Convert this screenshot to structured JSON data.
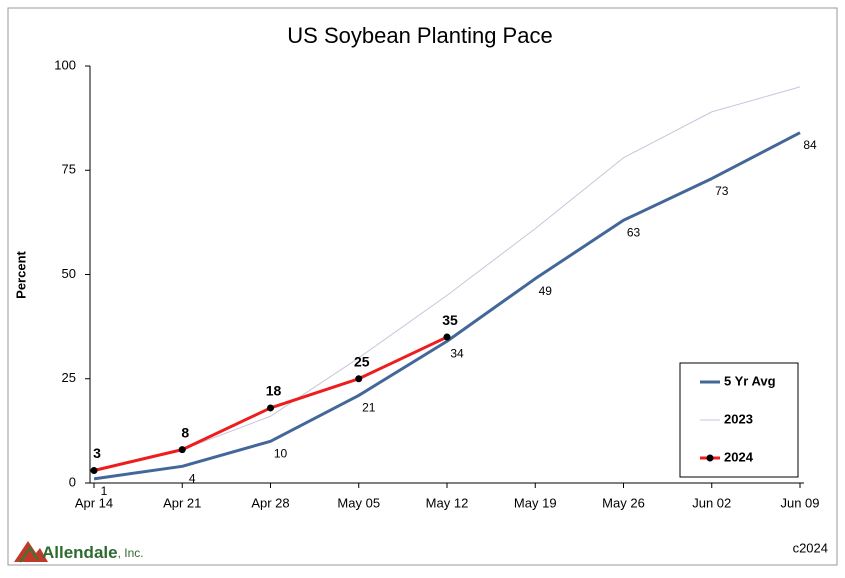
{
  "chart_data": {
    "type": "line",
    "title": "US Soybean Planting Pace",
    "y_label": "Percent",
    "categories": [
      "Apr 14",
      "Apr 21",
      "Apr 28",
      "May 05",
      "May 12",
      "May 19",
      "May 26",
      "Jun 02",
      "Jun 09"
    ],
    "series": [
      {
        "name": "5 Yr Avg",
        "color": "#44679a",
        "values": [
          1,
          4,
          10,
          21,
          34,
          49,
          63,
          73,
          84
        ],
        "labels": "below"
      },
      {
        "name": "2023",
        "color": "#c9c4dc",
        "values": [
          3,
          8,
          16,
          30,
          45,
          61,
          78,
          89,
          95
        ]
      },
      {
        "name": "2024",
        "color": "#ee1c1c",
        "values": [
          3,
          8,
          18,
          25,
          35,
          null,
          null,
          null,
          null
        ],
        "markers": true,
        "labels": "above"
      }
    ],
    "ylim": [
      0,
      100
    ],
    "yticks": [
      0,
      25,
      50,
      75,
      100
    ],
    "grid": false,
    "legend": "lower right"
  },
  "footer": {
    "logo": "Allendale",
    "logo_suffix": ", Inc.",
    "copyright": "c2024"
  }
}
